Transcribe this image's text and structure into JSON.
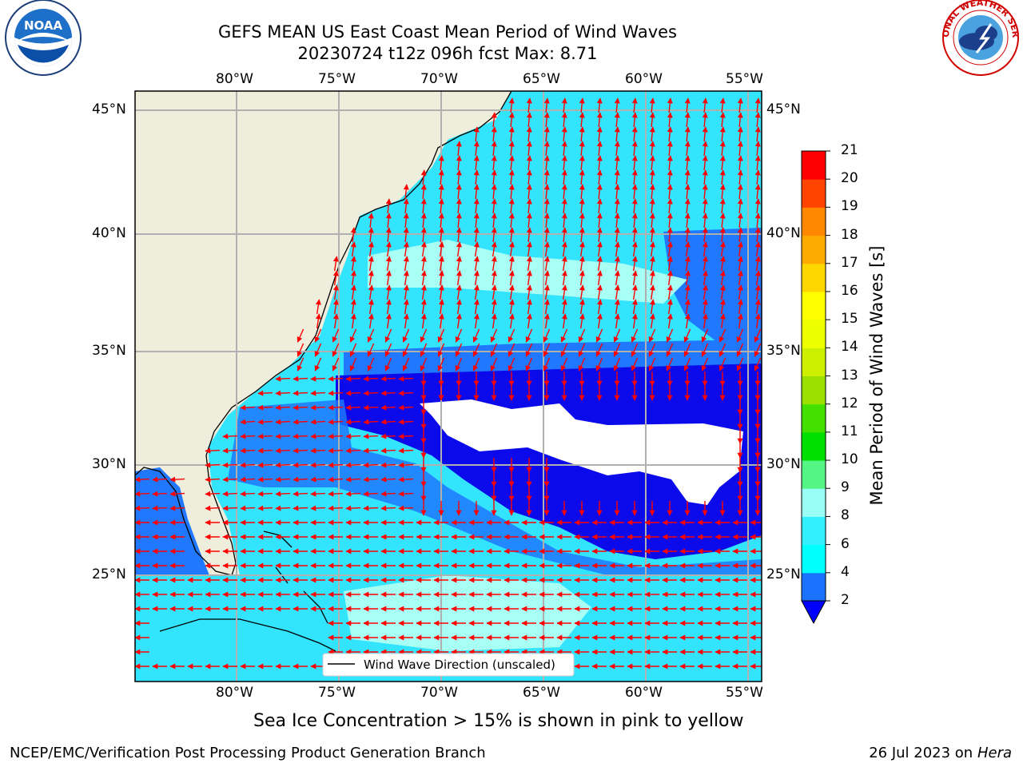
{
  "title": {
    "line1": "GEFS MEAN US East Coast Mean Period of Wind Waves",
    "line2": "20230724 t12z 096h fcst   Max: 8.71"
  },
  "logos": {
    "left": "noaa-logo",
    "left_text": "NOAA",
    "right": "nws-logo",
    "right_text": "NATIONAL WEATHER SERVICE"
  },
  "map": {
    "lon_labels": [
      "80°W",
      "75°W",
      "70°W",
      "65°W",
      "60°W",
      "55°W"
    ],
    "lat_labels": [
      "45°N",
      "40°N",
      "35°N",
      "30°N",
      "25°N"
    ],
    "legend_label": "Wind Wave Direction (unscaled)",
    "colors": {
      "land": "#efeddb",
      "ocean_2_4": "#1f78ff",
      "ocean_4_6": "#00ffff",
      "ocean_6_8": "#33e4ff",
      "ocean_light": "#a8fff4",
      "ocean_low": "#0a0aea",
      "missing": "#ffffff",
      "arrow": "#ff0000",
      "grid": "#b0b0b0"
    }
  },
  "colorbar": {
    "label": "Mean Period of Wind Waves [s]",
    "ticks": [
      "2",
      "4",
      "6",
      "8",
      "9",
      "10",
      "11",
      "12",
      "13",
      "14",
      "15",
      "16",
      "17",
      "18",
      "19",
      "20",
      "21"
    ],
    "colors": [
      "#1a73ff",
      "#00ffff",
      "#33f0ff",
      "#99fff6",
      "#55f584",
      "#00e000",
      "#44e000",
      "#99e000",
      "#ccf000",
      "#eeff00",
      "#ffff00",
      "#ffd700",
      "#ffaa00",
      "#ff8800",
      "#ff4400",
      "#ff0000"
    ]
  },
  "ice_note": "Sea Ice Concentration > 15% is shown in pink to yellow",
  "footer": {
    "left": "NCEP/EMC/Verification Post Processing Product Generation Branch",
    "right_prefix": "26 Jul 2023 on ",
    "right_host": "Hera"
  }
}
